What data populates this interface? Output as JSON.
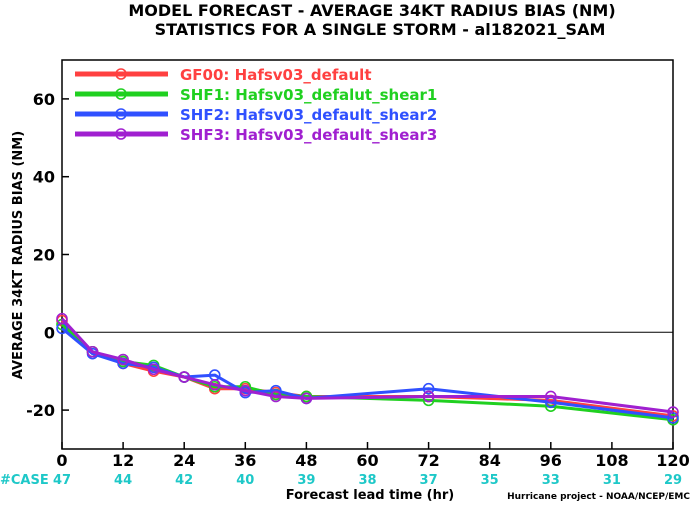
{
  "chart_data": {
    "type": "line",
    "title": "MODEL FORECAST - AVERAGE 34KT RADIUS BIAS (NM)",
    "subtitle": "STATISTICS FOR A SINGLE STORM - al182021_SAM",
    "xlabel": "Forecast lead time (hr)",
    "ylabel": "AVERAGE 34KT RADIUS BIAS (NM)",
    "xlim": [
      0,
      120
    ],
    "ylim": [
      -30,
      70
    ],
    "xticks": [
      0,
      12,
      24,
      36,
      48,
      60,
      72,
      84,
      96,
      108,
      120
    ],
    "yticks": [
      -20,
      0,
      20,
      40,
      60
    ],
    "zero_line": true,
    "legend_position": "top-left",
    "case_label": "#CASE",
    "case_x": [
      0,
      12,
      24,
      36,
      48,
      60,
      72,
      84,
      96,
      108,
      120
    ],
    "case_counts": [
      47,
      44,
      42,
      40,
      39,
      38,
      37,
      35,
      33,
      31,
      29
    ],
    "credit": "Hurricane project - NOAA/NCEP/EMC",
    "series": [
      {
        "name": "GF00: Hafsv03_default",
        "color": "#ff4040",
        "x": [
          0,
          6,
          12,
          18,
          24,
          30,
          36,
          42,
          48,
          72,
          96,
          120
        ],
        "y": [
          3,
          -5,
          -8,
          -10,
          -11.5,
          -14.5,
          -14.5,
          -15.5,
          -16.5,
          -16.5,
          -17.5,
          -21.5
        ]
      },
      {
        "name": "SHF1: Hafsv03_defalut_shear1",
        "color": "#20d020",
        "x": [
          0,
          6,
          12,
          18,
          24,
          30,
          36,
          42,
          48,
          72,
          96,
          120
        ],
        "y": [
          2,
          -5,
          -7.5,
          -8.5,
          -11.5,
          -14,
          -14,
          -16,
          -16.5,
          -17.5,
          -19,
          -22.5
        ]
      },
      {
        "name": "SHF2: Hafsv03_default_shear2",
        "color": "#3050ff",
        "x": [
          0,
          6,
          12,
          18,
          24,
          30,
          36,
          42,
          48,
          72,
          96,
          120
        ],
        "y": [
          1,
          -5.5,
          -8,
          -9,
          -11.5,
          -11,
          -15.5,
          -15,
          -17,
          -14.5,
          -18,
          -22
        ]
      },
      {
        "name": "SHF3: Hafsv03_default_shear3",
        "color": "#a020d0",
        "x": [
          0,
          6,
          12,
          18,
          24,
          30,
          36,
          42,
          48,
          72,
          96,
          120
        ],
        "y": [
          3.5,
          -5,
          -7,
          -9.5,
          -11.5,
          -13.5,
          -15,
          -16.5,
          -17,
          -16.5,
          -16.5,
          -20.5
        ]
      }
    ]
  }
}
